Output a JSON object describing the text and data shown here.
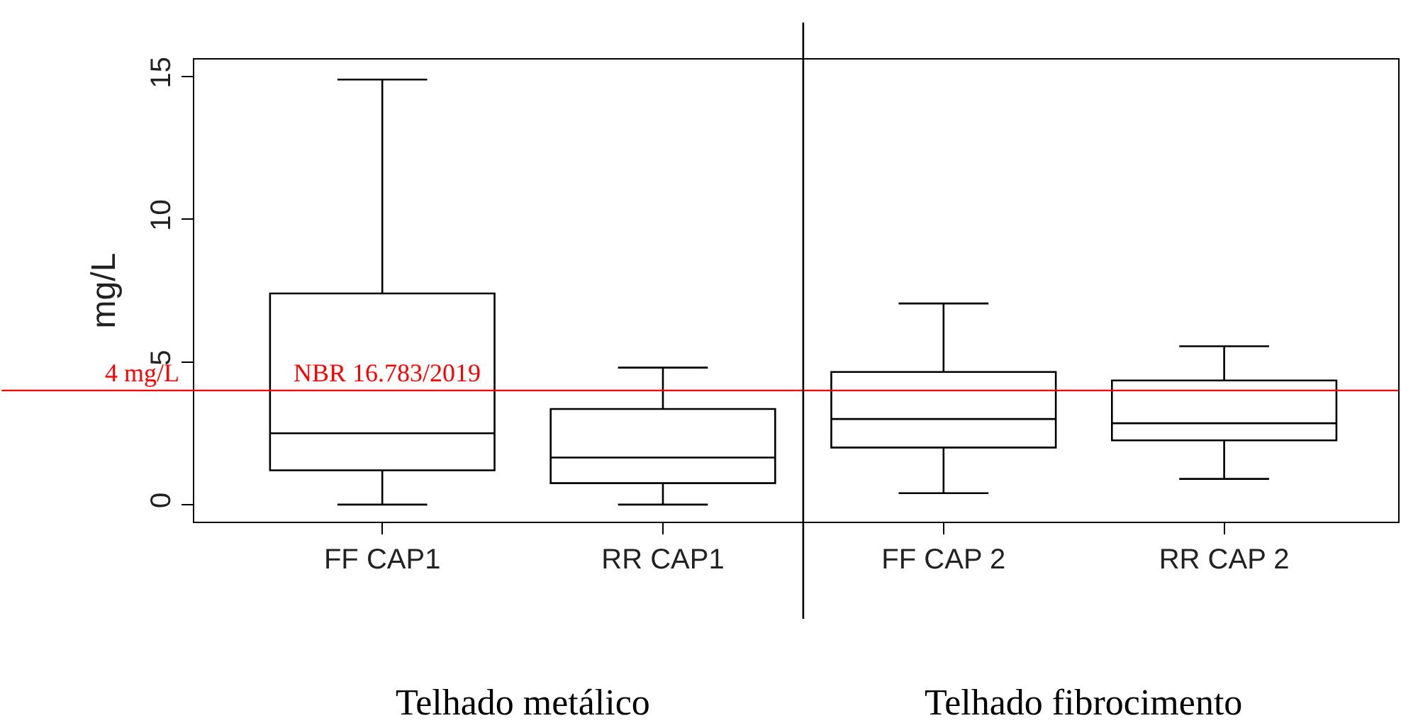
{
  "chart_data": {
    "type": "box",
    "ylabel": "mg/L",
    "categories": [
      "FF CAP1",
      "RR CAP1",
      "FF CAP 2",
      "RR CAP 2"
    ],
    "boxes": [
      {
        "low": 0,
        "q1": 1.2,
        "median": 2.5,
        "q3": 7.4,
        "high": 14.9
      },
      {
        "low": 0,
        "q1": 0.75,
        "median": 1.65,
        "q3": 3.35,
        "high": 4.8
      },
      {
        "low": 0.4,
        "q1": 2.0,
        "median": 3.0,
        "q3": 4.65,
        "high": 7.05
      },
      {
        "low": 0.9,
        "q1": 2.25,
        "median": 2.85,
        "q3": 4.35,
        "high": 5.55
      }
    ],
    "ylim": [
      -0.6,
      15.6
    ],
    "yticks": [
      0,
      5,
      10,
      15
    ],
    "grid": false,
    "legend": false,
    "ref_lines": [
      {
        "axis": "y",
        "value": 4,
        "label": "NBR 16.783/2019",
        "color": "#ff0000"
      }
    ],
    "annotations": [
      {
        "text": "4 mg/L",
        "y": 4
      },
      "Telhado metálico",
      "Telhado fibrocimento"
    ]
  }
}
